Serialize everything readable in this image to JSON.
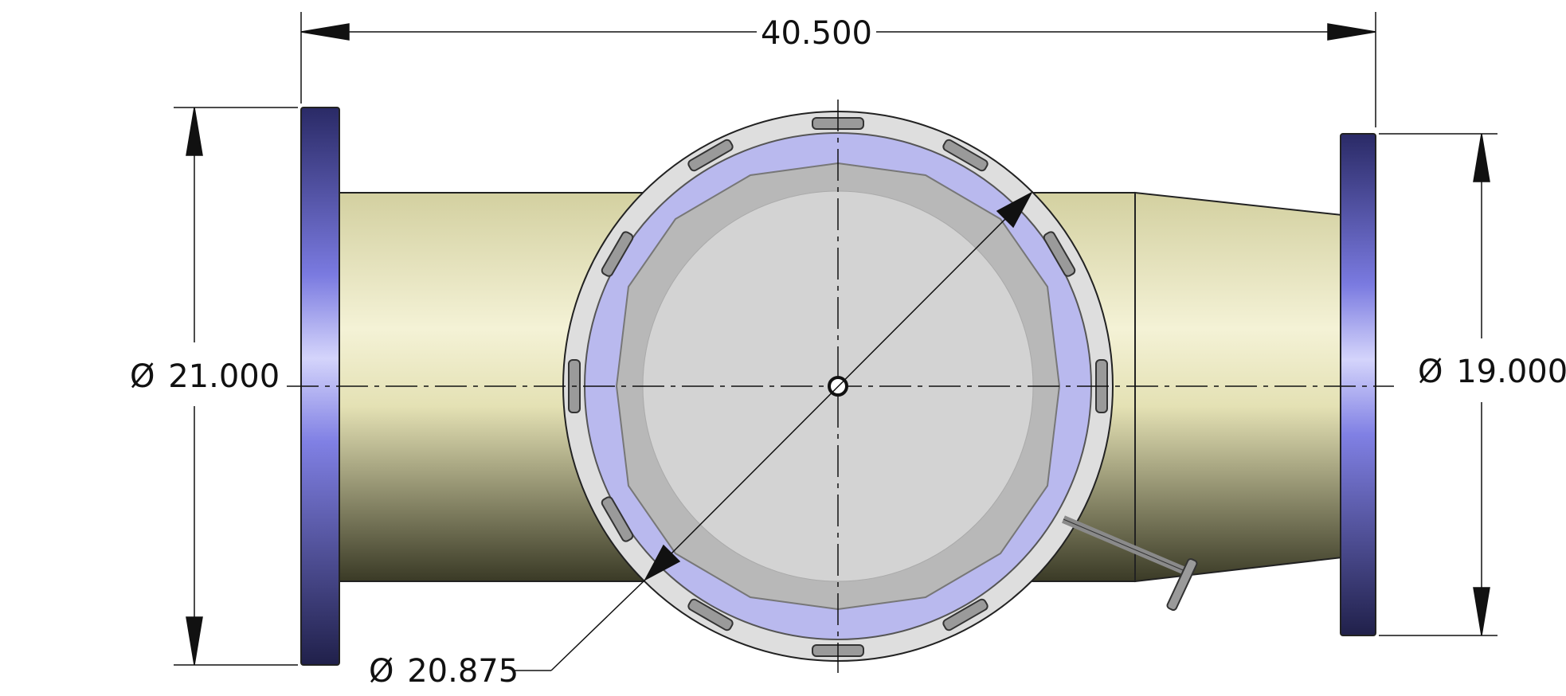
{
  "drawing": {
    "overall_length": "40.500",
    "left_flange_diameter": "21.000",
    "right_flange_diameter": "19.000",
    "manway_diameter": "20.875",
    "diameter_symbol": "Ø"
  },
  "colors": {
    "flange": "#6a6ad8",
    "pipe": "#e6e3b8",
    "ring": "#b7b7ec",
    "disc": "#d4d4d4",
    "line": "#111111"
  }
}
